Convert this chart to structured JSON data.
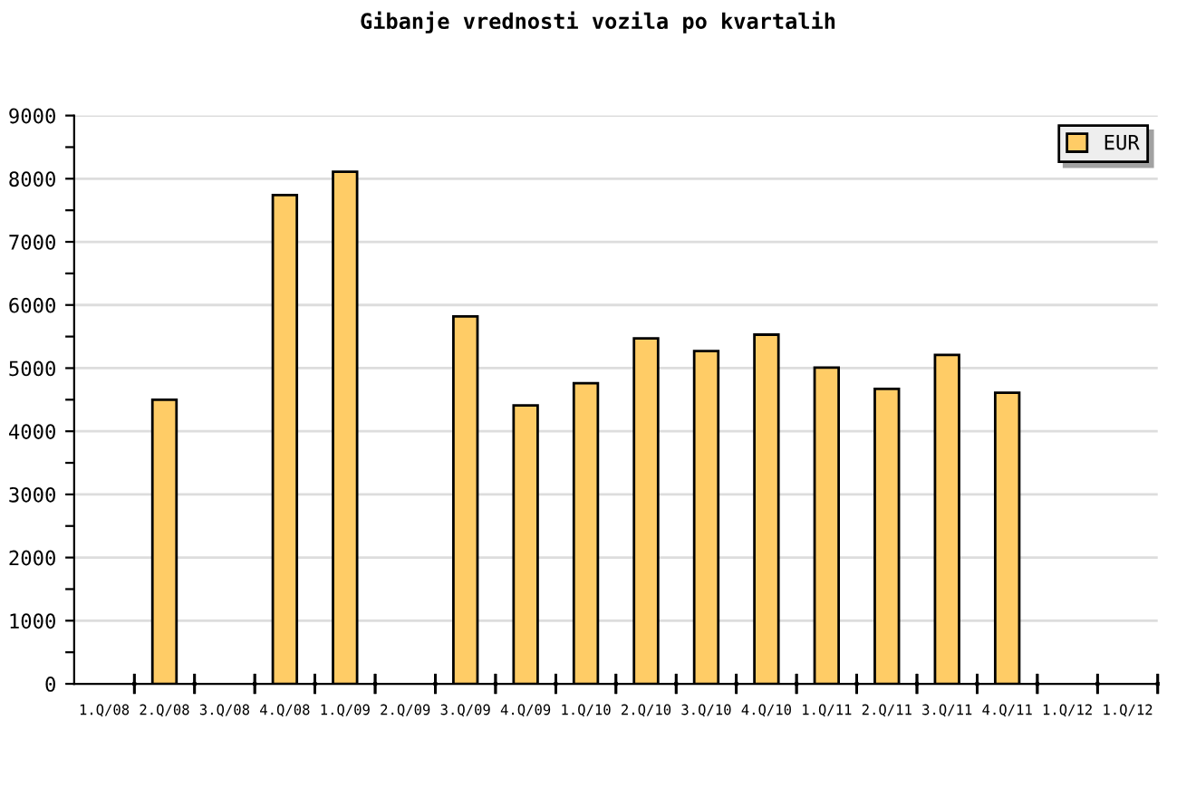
{
  "chart_data": {
    "type": "bar",
    "title": "Gibanje vrednosti vozila po kvartalih",
    "categories": [
      "1.Q/08",
      "2.Q/08",
      "3.Q/08",
      "4.Q/08",
      "1.Q/09",
      "2.Q/09",
      "3.Q/09",
      "4.Q/09",
      "1.Q/10",
      "2.Q/10",
      "3.Q/10",
      "4.Q/10",
      "1.Q/11",
      "2.Q/11",
      "3.Q/11",
      "4.Q/11",
      "1.Q/12",
      "1.Q/12"
    ],
    "series": [
      {
        "name": "EUR",
        "color": "#ffcc66",
        "values": [
          null,
          4500,
          null,
          7740,
          8110,
          null,
          5820,
          4410,
          4760,
          5470,
          5270,
          5530,
          5010,
          4670,
          5210,
          4610,
          null,
          null
        ]
      }
    ],
    "ylim": [
      0,
      9000
    ],
    "yticks": [
      0,
      {
        "value": 500,
        "label": null
      },
      1000,
      {
        "value": 1500,
        "label": null
      },
      2000,
      {
        "value": 2500,
        "label": null
      },
      3000,
      {
        "value": 3500,
        "label": null
      },
      4000,
      {
        "value": 4500,
        "label": null
      },
      5000,
      {
        "value": 5500,
        "label": null
      },
      6000,
      {
        "value": 6500,
        "label": null
      },
      7000,
      {
        "value": 7500,
        "label": null
      },
      8000,
      {
        "value": 8500,
        "label": null
      },
      9000
    ],
    "grid": "y",
    "legend": "top right"
  }
}
